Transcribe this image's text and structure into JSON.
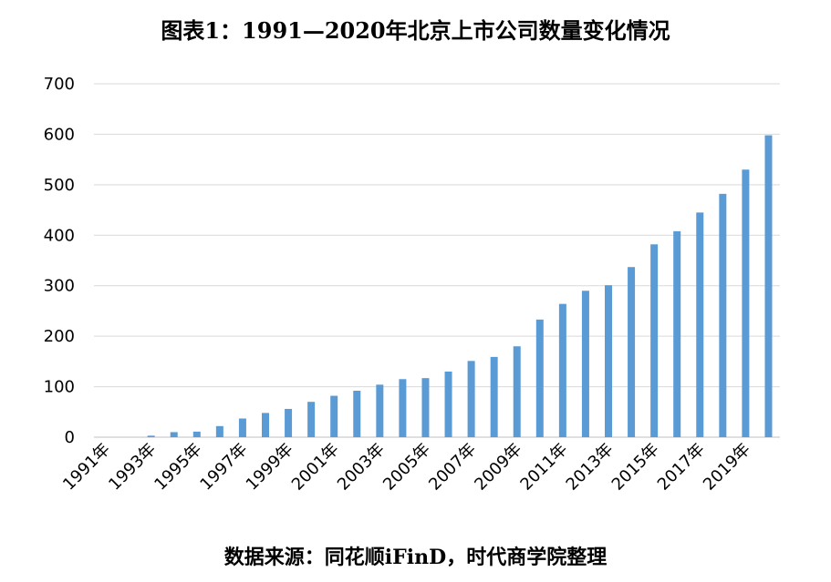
{
  "chart_data": {
    "type": "bar",
    "title": "图表1：1991—2020年北京上市公司数量变化情况",
    "xlabel": "",
    "ylabel": "",
    "ylim": [
      0,
      700
    ],
    "yticks": [
      "0",
      "100",
      "200",
      "300",
      "400",
      "500",
      "600",
      "700"
    ],
    "categories": [
      "1991年",
      "1992年",
      "1993年",
      "1994年",
      "1995年",
      "1996年",
      "1997年",
      "1998年",
      "1999年",
      "2000年",
      "2001年",
      "2002年",
      "2003年",
      "2004年",
      "2005年",
      "2006年",
      "2007年",
      "2008年",
      "2009年",
      "2010年",
      "2011年",
      "2012年",
      "2013年",
      "2014年",
      "2015年",
      "2016年",
      "2017年",
      "2018年",
      "2019年",
      "2020年"
    ],
    "visible_x_labels": [
      "1991年",
      "1993年",
      "1995年",
      "1997年",
      "1999年",
      "2001年",
      "2003年",
      "2005年",
      "2007年",
      "2009年",
      "2011年",
      "2013年",
      "2015年",
      "2017年",
      "2019年"
    ],
    "values": [
      0,
      0,
      3,
      10,
      11,
      22,
      37,
      48,
      56,
      70,
      82,
      92,
      104,
      115,
      117,
      130,
      151,
      159,
      180,
      233,
      264,
      290,
      301,
      337,
      382,
      408,
      445,
      482,
      530,
      598
    ],
    "bar_color": "#5b9bd5",
    "grid": true,
    "legend": "none",
    "source": "数据来源：同花顺iFinD，时代商学院整理"
  }
}
